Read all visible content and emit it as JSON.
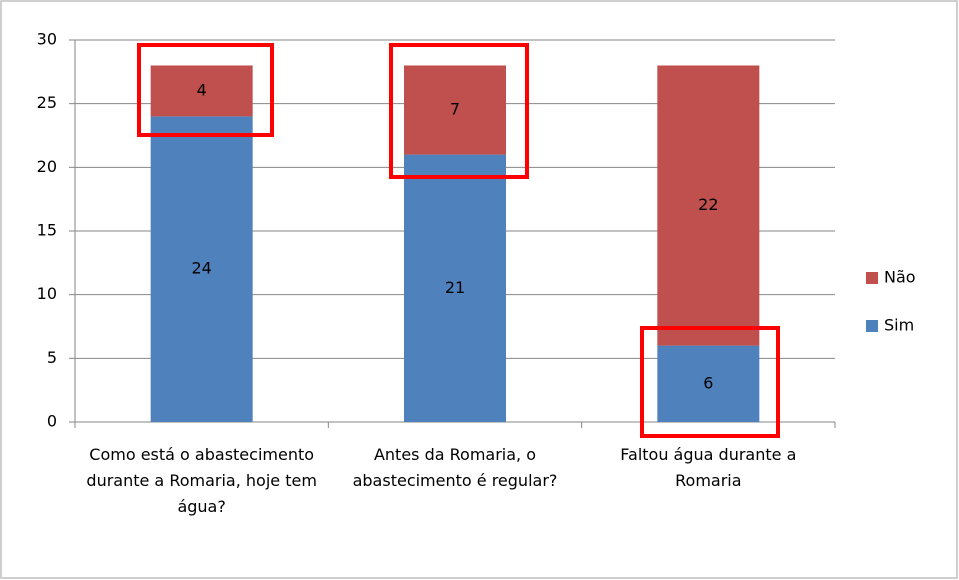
{
  "chart_data": {
    "type": "stacked_bar",
    "categories": [
      "Como está o abastecimento durante a Romaria, hoje tem água?",
      "Antes da Romaria, o abastecimento é regular?",
      "Faltou água durante a Romaria"
    ],
    "series": [
      {
        "name": "Sim",
        "color": "#4f81bd",
        "values": [
          24,
          21,
          6
        ]
      },
      {
        "name": "Não",
        "color": "#c0504d",
        "values": [
          4,
          7,
          22
        ]
      }
    ],
    "ylim": [
      0,
      30
    ],
    "yticks": [
      0,
      5,
      10,
      15,
      20,
      25,
      30
    ],
    "grid": true,
    "legend": "right"
  }
}
